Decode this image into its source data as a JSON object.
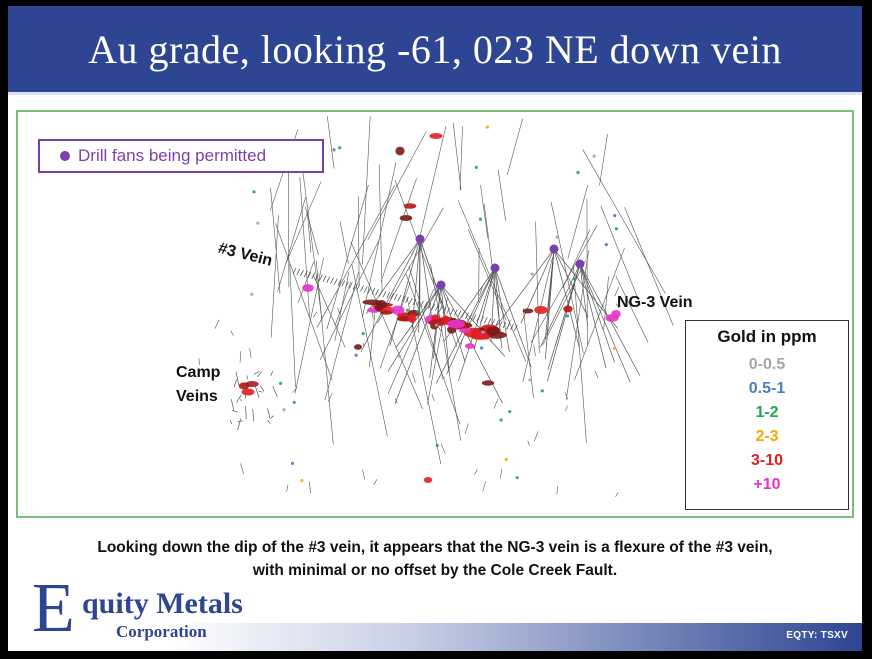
{
  "slide": {
    "title": "Au grade, looking -61, 023 NE down vein",
    "legend": {
      "label": "Drill fans being permitted",
      "dot_color": "#7b3fb0"
    },
    "grade_legend": {
      "title": "Gold in ppm",
      "entries": [
        {
          "label": "0-0.5",
          "color": "#a6a6a6"
        },
        {
          "label": "0.5-1",
          "color": "#4a7fc1"
        },
        {
          "label": "1-2",
          "color": "#1fa84f"
        },
        {
          "label": "2-3",
          "color": "#f5a800"
        },
        {
          "label": "3-10",
          "color": "#e02020"
        },
        {
          "label": "+10",
          "color": "#e633c8"
        }
      ]
    },
    "vein_labels": {
      "vein3": "#3 Vein",
      "ng3": "NG-3 Vein",
      "camp_line1": "Camp",
      "camp_line2": "Veins"
    },
    "caption": {
      "line1": "Looking down the dip of the #3 vein, it appears that the NG-3 vein is a flexure of the #3 vein,",
      "line2": "with minimal or no offset by the Cole Creek Fault."
    },
    "logo": {
      "initial": "E",
      "name": "quity Metals",
      "sub": "Corporation"
    },
    "ticker": "EQTY: TSXV"
  }
}
